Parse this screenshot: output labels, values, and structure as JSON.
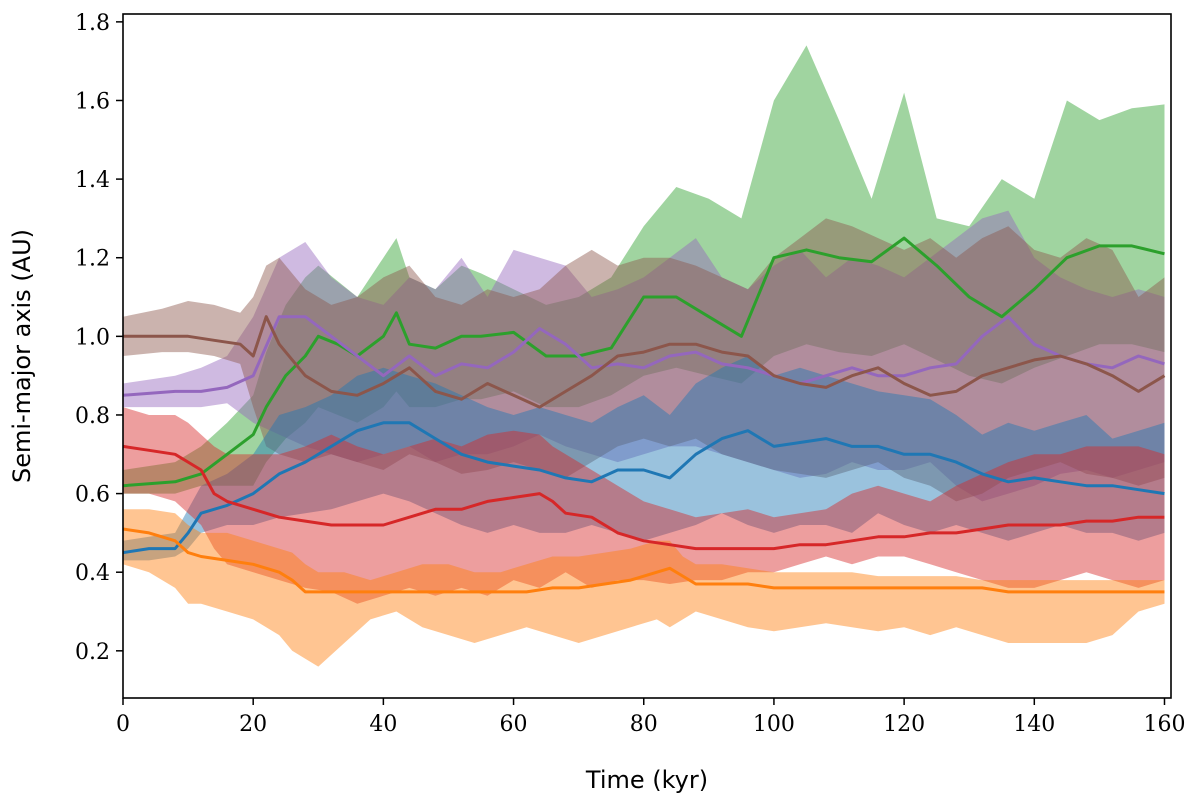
{
  "chart_data": {
    "type": "area",
    "title": "",
    "xlabel": "Time (kyr)",
    "ylabel": "Semi-major axis (AU)",
    "xlim": [
      0,
      161
    ],
    "ylim": [
      0.08,
      1.82
    ],
    "xticks": [
      0,
      20,
      40,
      60,
      80,
      100,
      120,
      140,
      160
    ],
    "yticks": [
      0.2,
      0.4,
      0.6,
      0.8,
      1.0,
      1.2,
      1.4,
      1.6,
      1.8
    ],
    "xtick_labels": [
      "0",
      "20",
      "40",
      "60",
      "80",
      "100",
      "120",
      "140",
      "160"
    ],
    "ytick_labels": [
      "0.2",
      "0.4",
      "0.6",
      "0.8",
      "1.0",
      "1.2",
      "1.4",
      "1.6",
      "1.8"
    ],
    "grid": false,
    "series": [
      {
        "name": "green",
        "color": "#2ca02c",
        "x": [
          0,
          8,
          12,
          16,
          20,
          22,
          25,
          28,
          30,
          33,
          36,
          40,
          42,
          44,
          48,
          52,
          55,
          60,
          65,
          70,
          75,
          80,
          85,
          90,
          95,
          100,
          105,
          110,
          115,
          120,
          125,
          130,
          135,
          140,
          145,
          150,
          155,
          160
        ],
        "mean": [
          0.62,
          0.63,
          0.65,
          0.7,
          0.75,
          0.82,
          0.9,
          0.95,
          1.0,
          0.98,
          0.95,
          1.0,
          1.06,
          0.98,
          0.97,
          1.0,
          1.0,
          1.01,
          0.95,
          0.95,
          0.97,
          1.1,
          1.1,
          1.05,
          1.0,
          1.2,
          1.22,
          1.2,
          1.19,
          1.25,
          1.18,
          1.1,
          1.05,
          1.12,
          1.2,
          1.23,
          1.23,
          1.21
        ],
        "lower": [
          0.6,
          0.6,
          0.62,
          0.62,
          0.62,
          0.68,
          0.74,
          0.78,
          0.82,
          0.8,
          0.78,
          0.82,
          0.86,
          0.82,
          0.82,
          0.84,
          0.84,
          0.86,
          0.82,
          0.82,
          0.85,
          0.9,
          0.92,
          0.9,
          0.88,
          0.95,
          0.98,
          0.96,
          0.95,
          0.98,
          0.94,
          0.9,
          0.88,
          0.92,
          0.95,
          0.98,
          0.98,
          0.96
        ],
        "upper": [
          0.66,
          0.68,
          0.72,
          0.78,
          0.85,
          0.96,
          1.08,
          1.15,
          1.18,
          1.14,
          1.1,
          1.2,
          1.25,
          1.15,
          1.12,
          1.18,
          1.16,
          1.12,
          1.08,
          1.1,
          1.15,
          1.28,
          1.38,
          1.35,
          1.3,
          1.6,
          1.74,
          1.55,
          1.35,
          1.62,
          1.3,
          1.28,
          1.4,
          1.35,
          1.6,
          1.55,
          1.58,
          1.59
        ]
      },
      {
        "name": "purple",
        "color": "#9467bd",
        "x": [
          0,
          8,
          12,
          16,
          20,
          24,
          28,
          32,
          36,
          40,
          44,
          48,
          52,
          56,
          60,
          64,
          68,
          72,
          76,
          80,
          84,
          88,
          92,
          96,
          100,
          104,
          108,
          112,
          116,
          120,
          124,
          128,
          132,
          136,
          140,
          144,
          148,
          152,
          156,
          160
        ],
        "mean": [
          0.85,
          0.86,
          0.86,
          0.87,
          0.9,
          1.05,
          1.05,
          1.0,
          0.95,
          0.9,
          0.95,
          0.9,
          0.93,
          0.92,
          0.96,
          1.02,
          0.98,
          0.92,
          0.93,
          0.92,
          0.95,
          0.96,
          0.93,
          0.92,
          0.9,
          0.88,
          0.9,
          0.92,
          0.9,
          0.9,
          0.92,
          0.93,
          1.0,
          1.05,
          0.98,
          0.95,
          0.93,
          0.92,
          0.95,
          0.93
        ],
        "lower": [
          0.82,
          0.82,
          0.82,
          0.83,
          0.78,
          0.75,
          0.72,
          0.7,
          0.68,
          0.7,
          0.72,
          0.68,
          0.7,
          0.7,
          0.72,
          0.75,
          0.72,
          0.7,
          0.68,
          0.7,
          0.72,
          0.72,
          0.7,
          0.68,
          0.66,
          0.64,
          0.65,
          0.68,
          0.66,
          0.66,
          0.68,
          0.62,
          0.58,
          0.6,
          0.62,
          0.65,
          0.66,
          0.64,
          0.66,
          0.68
        ],
        "upper": [
          0.88,
          0.9,
          0.92,
          0.95,
          1.05,
          1.2,
          1.24,
          1.15,
          1.1,
          1.08,
          1.15,
          1.12,
          1.2,
          1.1,
          1.22,
          1.2,
          1.18,
          1.1,
          1.12,
          1.15,
          1.2,
          1.25,
          1.15,
          1.12,
          1.18,
          1.22,
          1.15,
          1.2,
          1.18,
          1.15,
          1.2,
          1.25,
          1.3,
          1.32,
          1.2,
          1.15,
          1.12,
          1.1,
          1.12,
          1.1
        ]
      },
      {
        "name": "brown",
        "color": "#8c564b",
        "x": [
          0,
          6,
          10,
          14,
          18,
          20,
          22,
          24,
          28,
          32,
          36,
          40,
          44,
          48,
          52,
          56,
          60,
          64,
          68,
          72,
          76,
          80,
          84,
          88,
          92,
          96,
          100,
          104,
          108,
          112,
          116,
          120,
          124,
          128,
          132,
          136,
          140,
          144,
          148,
          152,
          156,
          160
        ],
        "mean": [
          1.0,
          1.0,
          1.0,
          0.99,
          0.98,
          0.95,
          1.05,
          0.98,
          0.9,
          0.86,
          0.85,
          0.88,
          0.92,
          0.86,
          0.84,
          0.88,
          0.85,
          0.82,
          0.86,
          0.9,
          0.95,
          0.96,
          0.98,
          0.98,
          0.96,
          0.95,
          0.9,
          0.88,
          0.87,
          0.9,
          0.92,
          0.88,
          0.85,
          0.86,
          0.9,
          0.92,
          0.94,
          0.95,
          0.93,
          0.9,
          0.86,
          0.9
        ],
        "lower": [
          0.95,
          0.96,
          0.96,
          0.95,
          0.93,
          0.82,
          0.72,
          0.7,
          0.68,
          0.7,
          0.68,
          0.66,
          0.7,
          0.68,
          0.65,
          0.66,
          0.68,
          0.66,
          0.64,
          0.68,
          0.72,
          0.74,
          0.72,
          0.74,
          0.7,
          0.68,
          0.66,
          0.65,
          0.64,
          0.66,
          0.68,
          0.64,
          0.62,
          0.58,
          0.6,
          0.64,
          0.66,
          0.68,
          0.65,
          0.64,
          0.62,
          0.64
        ],
        "upper": [
          1.05,
          1.07,
          1.09,
          1.08,
          1.06,
          1.1,
          1.18,
          1.2,
          1.12,
          1.08,
          1.1,
          1.15,
          1.18,
          1.1,
          1.08,
          1.12,
          1.1,
          1.12,
          1.18,
          1.22,
          1.18,
          1.2,
          1.2,
          1.18,
          1.15,
          1.12,
          1.2,
          1.25,
          1.3,
          1.28,
          1.25,
          1.22,
          1.25,
          1.2,
          1.25,
          1.28,
          1.22,
          1.2,
          1.25,
          1.22,
          1.1,
          1.15
        ]
      },
      {
        "name": "blue",
        "color": "#1f77b4",
        "x": [
          0,
          4,
          8,
          10,
          12,
          16,
          20,
          24,
          28,
          32,
          36,
          40,
          44,
          48,
          52,
          56,
          60,
          64,
          68,
          72,
          76,
          80,
          84,
          88,
          92,
          96,
          100,
          104,
          108,
          112,
          116,
          120,
          124,
          128,
          132,
          136,
          140,
          144,
          148,
          152,
          156,
          160
        ],
        "mean": [
          0.45,
          0.46,
          0.46,
          0.5,
          0.55,
          0.57,
          0.6,
          0.65,
          0.68,
          0.72,
          0.76,
          0.78,
          0.78,
          0.74,
          0.7,
          0.68,
          0.67,
          0.66,
          0.64,
          0.63,
          0.66,
          0.66,
          0.64,
          0.7,
          0.74,
          0.76,
          0.72,
          0.73,
          0.74,
          0.72,
          0.72,
          0.7,
          0.7,
          0.68,
          0.65,
          0.63,
          0.64,
          0.63,
          0.62,
          0.62,
          0.61,
          0.6
        ],
        "lower": [
          0.43,
          0.43,
          0.44,
          0.46,
          0.5,
          0.52,
          0.52,
          0.54,
          0.55,
          0.56,
          0.58,
          0.6,
          0.58,
          0.55,
          0.52,
          0.5,
          0.52,
          0.5,
          0.5,
          0.52,
          0.5,
          0.48,
          0.5,
          0.52,
          0.55,
          0.52,
          0.5,
          0.52,
          0.52,
          0.5,
          0.55,
          0.52,
          0.5,
          0.52,
          0.5,
          0.48,
          0.5,
          0.52,
          0.5,
          0.5,
          0.48,
          0.5
        ],
        "upper": [
          0.48,
          0.49,
          0.5,
          0.56,
          0.62,
          0.65,
          0.7,
          0.8,
          0.82,
          0.85,
          0.9,
          0.92,
          0.9,
          0.88,
          0.85,
          0.82,
          0.8,
          0.82,
          0.8,
          0.78,
          0.82,
          0.85,
          0.8,
          0.88,
          0.92,
          0.95,
          0.9,
          0.92,
          0.9,
          0.88,
          0.86,
          0.85,
          0.84,
          0.8,
          0.75,
          0.78,
          0.76,
          0.78,
          0.8,
          0.74,
          0.76,
          0.78
        ]
      },
      {
        "name": "red",
        "color": "#d62728",
        "x": [
          0,
          4,
          8,
          10,
          12,
          14,
          16,
          20,
          24,
          28,
          32,
          36,
          40,
          44,
          48,
          52,
          56,
          60,
          64,
          66,
          68,
          72,
          76,
          80,
          84,
          88,
          92,
          96,
          100,
          104,
          108,
          112,
          116,
          120,
          124,
          128,
          132,
          136,
          140,
          144,
          148,
          152,
          156,
          160
        ],
        "mean": [
          0.72,
          0.71,
          0.7,
          0.68,
          0.66,
          0.6,
          0.58,
          0.56,
          0.54,
          0.53,
          0.52,
          0.52,
          0.52,
          0.54,
          0.56,
          0.56,
          0.58,
          0.59,
          0.6,
          0.58,
          0.55,
          0.54,
          0.5,
          0.48,
          0.47,
          0.46,
          0.46,
          0.46,
          0.46,
          0.47,
          0.47,
          0.48,
          0.49,
          0.49,
          0.5,
          0.5,
          0.51,
          0.52,
          0.52,
          0.52,
          0.53,
          0.53,
          0.54,
          0.54
        ],
        "lower": [
          0.6,
          0.6,
          0.58,
          0.55,
          0.52,
          0.46,
          0.42,
          0.4,
          0.38,
          0.36,
          0.35,
          0.32,
          0.34,
          0.36,
          0.34,
          0.36,
          0.34,
          0.38,
          0.36,
          0.38,
          0.4,
          0.36,
          0.38,
          0.38,
          0.37,
          0.38,
          0.38,
          0.4,
          0.4,
          0.42,
          0.44,
          0.42,
          0.44,
          0.44,
          0.42,
          0.4,
          0.38,
          0.36,
          0.36,
          0.38,
          0.4,
          0.38,
          0.36,
          0.38
        ],
        "upper": [
          0.82,
          0.8,
          0.8,
          0.78,
          0.75,
          0.72,
          0.7,
          0.7,
          0.7,
          0.72,
          0.75,
          0.72,
          0.7,
          0.72,
          0.74,
          0.72,
          0.75,
          0.76,
          0.75,
          0.72,
          0.7,
          0.66,
          0.62,
          0.58,
          0.56,
          0.54,
          0.55,
          0.56,
          0.54,
          0.55,
          0.56,
          0.6,
          0.62,
          0.6,
          0.58,
          0.62,
          0.65,
          0.68,
          0.7,
          0.7,
          0.72,
          0.72,
          0.72,
          0.7
        ]
      },
      {
        "name": "orange",
        "color": "#ff7f0e",
        "x": [
          0,
          4,
          8,
          10,
          12,
          16,
          20,
          24,
          26,
          28,
          30,
          34,
          38,
          42,
          46,
          50,
          54,
          58,
          62,
          66,
          70,
          74,
          78,
          82,
          84,
          86,
          88,
          92,
          96,
          100,
          104,
          108,
          112,
          116,
          120,
          124,
          128,
          132,
          136,
          140,
          144,
          148,
          152,
          156,
          160
        ],
        "mean": [
          0.51,
          0.5,
          0.48,
          0.45,
          0.44,
          0.43,
          0.42,
          0.4,
          0.38,
          0.35,
          0.35,
          0.35,
          0.35,
          0.35,
          0.35,
          0.35,
          0.35,
          0.35,
          0.35,
          0.36,
          0.36,
          0.37,
          0.38,
          0.4,
          0.41,
          0.39,
          0.37,
          0.37,
          0.37,
          0.36,
          0.36,
          0.36,
          0.36,
          0.36,
          0.36,
          0.36,
          0.36,
          0.36,
          0.35,
          0.35,
          0.35,
          0.35,
          0.35,
          0.35,
          0.35
        ],
        "lower": [
          0.42,
          0.4,
          0.36,
          0.32,
          0.32,
          0.3,
          0.28,
          0.24,
          0.2,
          0.18,
          0.16,
          0.22,
          0.28,
          0.3,
          0.26,
          0.24,
          0.22,
          0.24,
          0.26,
          0.24,
          0.22,
          0.24,
          0.26,
          0.28,
          0.26,
          0.28,
          0.3,
          0.28,
          0.26,
          0.25,
          0.26,
          0.27,
          0.26,
          0.25,
          0.26,
          0.24,
          0.26,
          0.24,
          0.22,
          0.22,
          0.22,
          0.22,
          0.24,
          0.3,
          0.32
        ],
        "upper": [
          0.56,
          0.56,
          0.55,
          0.52,
          0.5,
          0.5,
          0.48,
          0.46,
          0.45,
          0.42,
          0.4,
          0.4,
          0.38,
          0.4,
          0.42,
          0.42,
          0.4,
          0.4,
          0.42,
          0.44,
          0.44,
          0.45,
          0.46,
          0.48,
          0.48,
          0.44,
          0.42,
          0.42,
          0.41,
          0.4,
          0.4,
          0.4,
          0.4,
          0.39,
          0.39,
          0.39,
          0.39,
          0.38,
          0.38,
          0.38,
          0.38,
          0.38,
          0.38,
          0.38,
          0.38
        ]
      }
    ]
  }
}
